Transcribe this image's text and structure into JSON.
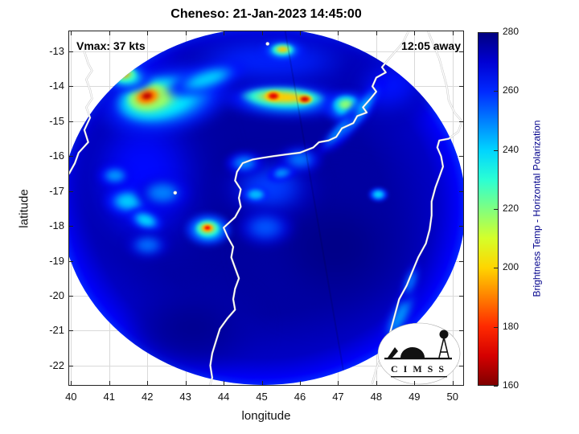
{
  "figure": {
    "title": "Cheneso: 21-Jan-2023 14:45:00",
    "vmax_label": "Vmax: 37 kts",
    "time_label": "12:05 away"
  },
  "axes": {
    "xlabel": "longitude",
    "ylabel": "latitude",
    "x_ticks": [
      40,
      41,
      42,
      43,
      44,
      45,
      46,
      47,
      48,
      49,
      50
    ],
    "y_ticks": [
      -13,
      -14,
      -15,
      -16,
      -17,
      -18,
      -19,
      -20,
      -21,
      -22
    ],
    "x_range": [
      39.93,
      50.3
    ],
    "y_range": [
      -22.58,
      -12.4
    ]
  },
  "colorbar": {
    "label": "Brightness Temp - Horizontal Polarization",
    "ticks": [
      280,
      260,
      240,
      220,
      200,
      180,
      160
    ],
    "min": 160,
    "max": 280,
    "colormap": "jet reversed (280=dark blue at top, 160=dark red at bottom)"
  },
  "logo": {
    "text": "C I M S S"
  },
  "chart_data": {
    "type": "heatmap",
    "title": "Cheneso: 21-Jan-2023 14:45:00",
    "xlabel": "longitude",
    "ylabel": "latitude",
    "xlim": [
      39.93,
      50.3
    ],
    "ylim": [
      -22.58,
      -12.4
    ],
    "value_label": "Brightness Temp - Horizontal Polarization (K)",
    "value_range": [
      160,
      280
    ],
    "grid": true,
    "swath": {
      "center_lon": 45.04,
      "center_lat": -17.45,
      "rx_deg": 5.31,
      "ry_deg": 5.11,
      "radial_temps": [
        [
          0,
          277
        ],
        [
          60,
          276
        ],
        [
          85,
          272
        ],
        [
          96,
          266
        ],
        [
          100,
          261
        ]
      ]
    },
    "features": [
      {
        "name": "left-wash",
        "lon": 41.9,
        "lat": -16.6,
        "w": 4.4,
        "h": 6.2,
        "rot": 0,
        "t_core": 264,
        "t_edge": 275,
        "blur": 16
      },
      {
        "name": "top-band",
        "lon": 45.2,
        "lat": -13.25,
        "w": 6.6,
        "h": 2.0,
        "rot": 0,
        "t_core": 261,
        "t_edge": 274,
        "blur": 12
      },
      {
        "name": "ne-wash",
        "lon": 48.4,
        "lat": -14.0,
        "w": 3.0,
        "h": 2.4,
        "rot": -20,
        "t_core": 263,
        "t_edge": 275,
        "blur": 12
      },
      {
        "name": "dark-core-east",
        "lon": 46.9,
        "lat": -18.6,
        "w": 4.6,
        "h": 4.2,
        "rot": 0,
        "t_core": 279,
        "t_edge": 276,
        "blur": 18
      },
      {
        "name": "dark-south",
        "lon": 43.2,
        "lat": -20.9,
        "w": 3.6,
        "h": 2.6,
        "rot": 0,
        "t_core": 278,
        "t_edge": 275,
        "blur": 14
      },
      {
        "name": "nw-convection-halo",
        "lon": 42.5,
        "lat": -14.4,
        "w": 3.8,
        "h": 2.1,
        "rot": -12,
        "t_core": 236,
        "t_edge": 262,
        "blur": 7
      },
      {
        "name": "nw-convection-green",
        "lon": 42.15,
        "lat": -14.35,
        "w": 2.1,
        "h": 1.25,
        "rot": -12,
        "t_core": 214,
        "t_edge": 238,
        "blur": 5
      },
      {
        "name": "nw-convection-yellow",
        "lon": 42.0,
        "lat": -14.3,
        "w": 1.15,
        "h": 0.8,
        "rot": -12,
        "t_core": 192,
        "t_edge": 218,
        "blur": 3
      },
      {
        "name": "nw-convection-red-core",
        "lon": 42.0,
        "lat": -14.28,
        "w": 0.55,
        "h": 0.4,
        "rot": -12,
        "t_core": 168,
        "t_edge": 192,
        "blur": 2
      },
      {
        "name": "nw-spur-cyan",
        "lon": 43.55,
        "lat": -13.8,
        "w": 2.4,
        "h": 0.85,
        "rot": -18,
        "t_core": 240,
        "t_edge": 263,
        "blur": 5
      },
      {
        "name": "nw-west-halo",
        "lon": 41.4,
        "lat": -13.7,
        "w": 1.6,
        "h": 1.0,
        "rot": 10,
        "t_core": 233,
        "t_edge": 260,
        "blur": 4
      },
      {
        "name": "nw-west-orange",
        "lon": 41.35,
        "lat": -13.62,
        "w": 0.8,
        "h": 0.5,
        "rot": 10,
        "t_core": 194,
        "t_edge": 226,
        "blur": 2.5
      },
      {
        "name": "band-halo",
        "lon": 45.6,
        "lat": -14.4,
        "w": 3.6,
        "h": 1.05,
        "rot": 2,
        "t_core": 238,
        "t_edge": 263,
        "blur": 6
      },
      {
        "name": "band-yellow",
        "lon": 45.55,
        "lat": -14.32,
        "w": 2.3,
        "h": 0.6,
        "rot": 2,
        "t_core": 199,
        "t_edge": 230,
        "blur": 3
      },
      {
        "name": "band-red-west",
        "lon": 45.3,
        "lat": -14.27,
        "w": 0.5,
        "h": 0.34,
        "rot": 0,
        "t_core": 172,
        "t_edge": 199,
        "blur": 1.5
      },
      {
        "name": "band-red-east",
        "lon": 46.12,
        "lat": -14.36,
        "w": 0.46,
        "h": 0.3,
        "rot": 0,
        "t_core": 170,
        "t_edge": 199,
        "blur": 1.5
      },
      {
        "name": "top-spot-halo",
        "lon": 45.55,
        "lat": -12.98,
        "w": 1.3,
        "h": 0.65,
        "rot": 0,
        "t_core": 237,
        "t_edge": 262,
        "blur": 4
      },
      {
        "name": "top-spot-yellow",
        "lon": 45.55,
        "lat": -12.94,
        "w": 0.6,
        "h": 0.34,
        "rot": 0,
        "t_core": 199,
        "t_edge": 230,
        "blur": 2
      },
      {
        "name": "east-blob-halo",
        "lon": 47.25,
        "lat": -14.6,
        "w": 1.35,
        "h": 1.05,
        "rot": 0,
        "t_core": 238,
        "t_edge": 261,
        "blur": 4
      },
      {
        "name": "east-blob-green",
        "lon": 47.2,
        "lat": -14.52,
        "w": 0.72,
        "h": 0.56,
        "rot": 0,
        "t_core": 219,
        "t_edge": 241,
        "blur": 2.5
      },
      {
        "name": "nw-coast-streak-1",
        "lon": 47.55,
        "lat": -14.75,
        "w": 2.7,
        "h": 0.55,
        "rot": -52,
        "t_core": 242,
        "t_edge": 265,
        "blur": 4
      },
      {
        "name": "nw-coast-streak-2",
        "lon": 47.0,
        "lat": -15.3,
        "w": 1.8,
        "h": 0.42,
        "rot": -48,
        "t_core": 246,
        "t_edge": 267,
        "blur": 4
      },
      {
        "name": "left-texture-1",
        "lon": 41.5,
        "lat": -17.3,
        "w": 1.35,
        "h": 0.95,
        "rot": 0,
        "t_core": 241,
        "t_edge": 263,
        "blur": 4
      },
      {
        "name": "left-texture-2",
        "lon": 41.95,
        "lat": -17.85,
        "w": 1.05,
        "h": 0.7,
        "rot": 20,
        "t_core": 240,
        "t_edge": 262,
        "blur": 3.5
      },
      {
        "name": "left-texture-3",
        "lon": 41.15,
        "lat": -16.55,
        "w": 1.0,
        "h": 0.72,
        "rot": 0,
        "t_core": 247,
        "t_edge": 266,
        "blur": 4
      },
      {
        "name": "left-texture-4",
        "lon": 42.4,
        "lat": -17.05,
        "w": 1.55,
        "h": 1.05,
        "rot": 0,
        "t_core": 250,
        "t_edge": 268,
        "blur": 5
      },
      {
        "name": "left-texture-5",
        "lon": 42.0,
        "lat": -18.55,
        "w": 1.25,
        "h": 0.85,
        "rot": 0,
        "t_core": 252,
        "t_edge": 270,
        "blur": 5
      },
      {
        "name": "warm-spot-halo",
        "lon": 43.6,
        "lat": -18.1,
        "w": 1.35,
        "h": 1.05,
        "rot": 0,
        "t_core": 234,
        "t_edge": 259,
        "blur": 3.5
      },
      {
        "name": "warm-spot-yellow",
        "lon": 43.58,
        "lat": -18.07,
        "w": 0.62,
        "h": 0.46,
        "rot": 0,
        "t_core": 195,
        "t_edge": 226,
        "blur": 2
      },
      {
        "name": "warm-spot-red",
        "lon": 43.57,
        "lat": -18.05,
        "w": 0.3,
        "h": 0.2,
        "rot": 0,
        "t_core": 174,
        "t_edge": 197,
        "blur": 1.2
      },
      {
        "name": "center-texture-1",
        "lon": 45.2,
        "lat": -16.9,
        "w": 2.9,
        "h": 2.1,
        "rot": 0,
        "t_core": 258,
        "t_edge": 273,
        "blur": 9
      },
      {
        "name": "center-texture-2",
        "lon": 44.85,
        "lat": -17.1,
        "w": 0.8,
        "h": 0.56,
        "rot": 0,
        "t_core": 243,
        "t_edge": 261,
        "blur": 2.5
      },
      {
        "name": "center-texture-3",
        "lon": 45.55,
        "lat": -16.45,
        "w": 0.9,
        "h": 0.52,
        "rot": -20,
        "t_core": 247,
        "t_edge": 265,
        "blur": 3
      },
      {
        "name": "center-texture-4",
        "lon": 44.55,
        "lat": -16.2,
        "w": 1.1,
        "h": 0.72,
        "rot": 0,
        "t_core": 249,
        "t_edge": 267,
        "blur": 4
      },
      {
        "name": "center-texture-5",
        "lon": 45.1,
        "lat": -18.05,
        "w": 1.65,
        "h": 1.15,
        "rot": 0,
        "t_core": 255,
        "t_edge": 270,
        "blur": 6
      },
      {
        "name": "center-texture-6",
        "lon": 46.0,
        "lat": -16.1,
        "w": 1.25,
        "h": 0.85,
        "rot": 0,
        "t_core": 251,
        "t_edge": 268,
        "blur": 5
      },
      {
        "name": "right-small-cyan",
        "lon": 48.05,
        "lat": -17.1,
        "w": 0.56,
        "h": 0.46,
        "rot": 0,
        "t_core": 240,
        "t_edge": 261,
        "blur": 2
      },
      {
        "name": "se-coast-streak-1",
        "lon": 48.6,
        "lat": -20.6,
        "w": 2.1,
        "h": 0.62,
        "rot": -62,
        "t_core": 245,
        "t_edge": 267,
        "blur": 5
      },
      {
        "name": "se-coast-streak-2",
        "lon": 48.9,
        "lat": -19.6,
        "w": 1.25,
        "h": 0.48,
        "rot": -70,
        "t_core": 251,
        "t_edge": 269,
        "blur": 4
      }
    ],
    "seam": {
      "top_lon": 45.6,
      "bottom_lon": 47.2,
      "opacity": 0.18
    },
    "coastlines": {
      "mozambique": [
        [
          40.35,
          -13.0
        ],
        [
          40.45,
          -13.35
        ],
        [
          40.55,
          -13.55
        ],
        [
          40.4,
          -13.8
        ],
        [
          40.5,
          -14.1
        ],
        [
          40.55,
          -14.35
        ],
        [
          40.4,
          -14.6
        ],
        [
          40.5,
          -14.9
        ],
        [
          40.35,
          -15.25
        ],
        [
          40.45,
          -15.6
        ],
        [
          40.2,
          -15.9
        ],
        [
          40.1,
          -16.2
        ],
        [
          39.95,
          -16.5
        ]
      ],
      "madagascar_west": [
        [
          48.85,
          -12.4
        ],
        [
          48.7,
          -12.75
        ],
        [
          48.5,
          -13.0
        ],
        [
          48.3,
          -13.25
        ],
        [
          48.15,
          -13.45
        ],
        [
          48.25,
          -13.6
        ],
        [
          48.0,
          -13.75
        ],
        [
          47.9,
          -14.0
        ],
        [
          48.0,
          -14.15
        ],
        [
          47.85,
          -14.35
        ],
        [
          47.65,
          -14.6
        ],
        [
          47.75,
          -14.75
        ],
        [
          47.5,
          -14.85
        ],
        [
          47.4,
          -15.05
        ],
        [
          47.1,
          -15.2
        ],
        [
          46.95,
          -15.45
        ],
        [
          46.75,
          -15.55
        ],
        [
          46.5,
          -15.6
        ],
        [
          46.35,
          -15.75
        ],
        [
          46.0,
          -15.9
        ],
        [
          45.65,
          -15.95
        ],
        [
          45.3,
          -16.0
        ],
        [
          45.0,
          -16.05
        ],
        [
          44.75,
          -16.1
        ],
        [
          44.5,
          -16.2
        ],
        [
          44.35,
          -16.45
        ],
        [
          44.3,
          -16.7
        ],
        [
          44.45,
          -16.95
        ],
        [
          44.4,
          -17.2
        ],
        [
          44.45,
          -17.45
        ],
        [
          44.3,
          -17.75
        ],
        [
          44.0,
          -18.05
        ],
        [
          44.1,
          -18.3
        ],
        [
          44.25,
          -18.6
        ],
        [
          44.2,
          -18.9
        ],
        [
          44.3,
          -19.2
        ],
        [
          44.4,
          -19.5
        ],
        [
          44.3,
          -19.8
        ],
        [
          44.25,
          -20.1
        ],
        [
          44.3,
          -20.4
        ],
        [
          44.1,
          -20.65
        ],
        [
          43.9,
          -20.95
        ],
        [
          43.8,
          -21.3
        ],
        [
          43.7,
          -21.65
        ],
        [
          43.65,
          -22.0
        ],
        [
          43.7,
          -22.35
        ],
        [
          43.6,
          -22.7
        ]
      ],
      "madagascar_east": [
        [
          49.35,
          -12.4
        ],
        [
          49.5,
          -12.8
        ],
        [
          49.65,
          -13.2
        ],
        [
          49.75,
          -13.6
        ],
        [
          49.85,
          -14.0
        ],
        [
          49.9,
          -14.4
        ],
        [
          50.05,
          -14.75
        ],
        [
          50.25,
          -15.0
        ],
        [
          50.15,
          -15.3
        ],
        [
          49.9,
          -15.5
        ],
        [
          49.65,
          -15.55
        ],
        [
          49.6,
          -15.75
        ],
        [
          49.7,
          -16.0
        ],
        [
          49.75,
          -16.3
        ],
        [
          49.65,
          -16.6
        ],
        [
          49.55,
          -16.9
        ],
        [
          49.45,
          -17.3
        ],
        [
          49.45,
          -17.7
        ],
        [
          49.4,
          -18.1
        ],
        [
          49.3,
          -18.5
        ],
        [
          49.1,
          -18.9
        ],
        [
          48.95,
          -19.3
        ],
        [
          48.8,
          -19.7
        ],
        [
          48.6,
          -20.1
        ],
        [
          48.5,
          -20.5
        ],
        [
          48.4,
          -20.9
        ],
        [
          48.3,
          -21.3
        ],
        [
          48.15,
          -21.7
        ],
        [
          48.0,
          -22.1
        ],
        [
          47.9,
          -22.5
        ]
      ],
      "islands": [
        [
          42.73,
          -17.05
        ],
        [
          45.15,
          -12.78
        ]
      ]
    }
  }
}
